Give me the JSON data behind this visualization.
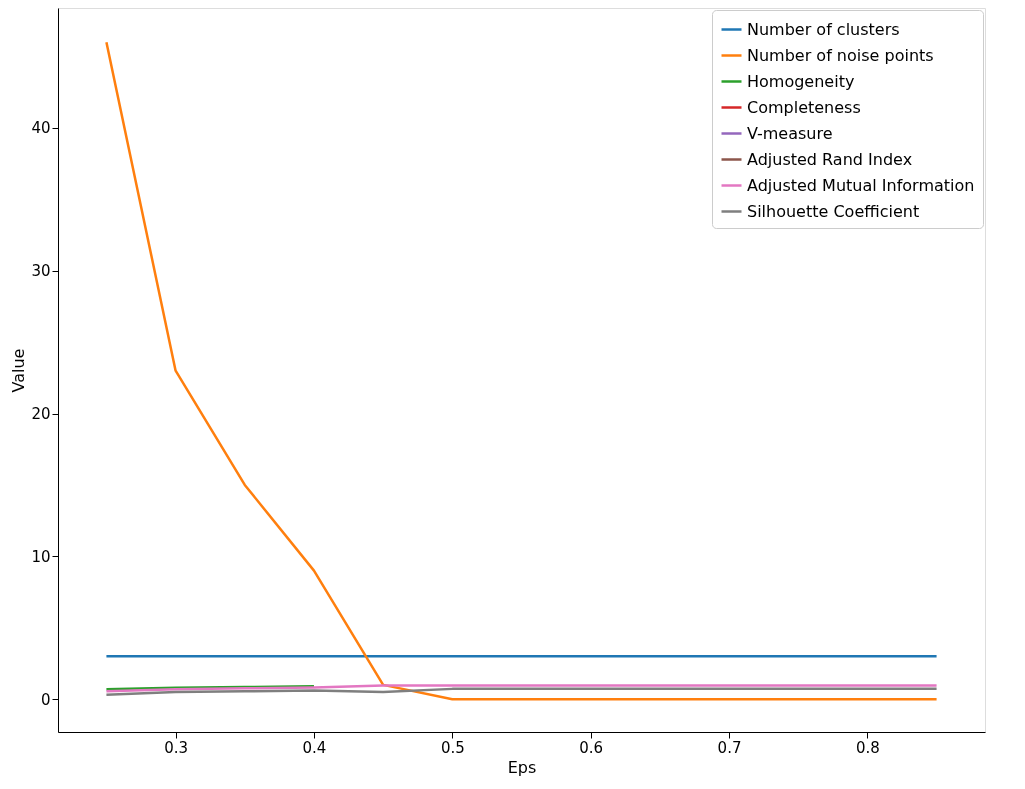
{
  "chart_data": {
    "type": "line",
    "xlabel": "Eps",
    "ylabel": "Value",
    "x": [
      0.25,
      0.3,
      0.35,
      0.4,
      0.45,
      0.5,
      0.55,
      0.6,
      0.65,
      0.7,
      0.75,
      0.8,
      0.85
    ],
    "xlim": [
      0.215,
      0.885
    ],
    "xticks": [
      0.3,
      0.4,
      0.5,
      0.6,
      0.7,
      0.8
    ],
    "ylim": [
      -2.3,
      48.4
    ],
    "yticks": [
      0,
      10,
      20,
      30,
      40
    ],
    "legend": "top right",
    "grid": false,
    "marker": "none",
    "line_style": "solid",
    "series": [
      {
        "name": "Number of clusters",
        "color": "#1f77b4",
        "values": [
          3,
          3,
          3,
          3,
          3,
          3,
          3,
          3,
          3,
          3,
          3,
          3,
          3
        ]
      },
      {
        "name": "Number of noise points",
        "color": "#ff7f0e",
        "values": [
          46,
          23,
          15,
          9,
          1,
          0,
          0,
          0,
          0,
          0,
          0,
          0,
          0
        ]
      },
      {
        "name": "Homogeneity",
        "color": "#2ca02c",
        "values": [
          0.7,
          0.8,
          0.85,
          0.9,
          null,
          null,
          null,
          null,
          null,
          null,
          null,
          null,
          null
        ]
      },
      {
        "name": "Completeness",
        "color": "#d62728",
        "values": [
          null,
          null,
          null,
          null,
          null,
          null,
          null,
          null,
          null,
          null,
          null,
          null,
          null
        ]
      },
      {
        "name": "V-measure",
        "color": "#9467bd",
        "values": [
          null,
          null,
          null,
          null,
          null,
          null,
          null,
          null,
          null,
          null,
          null,
          null,
          null
        ]
      },
      {
        "name": "Adjusted Rand Index",
        "color": "#8c564b",
        "values": [
          null,
          null,
          null,
          null,
          null,
          null,
          null,
          null,
          null,
          null,
          null,
          null,
          null
        ]
      },
      {
        "name": "Adjusted Mutual Information",
        "color": "#e377c2",
        "values": [
          0.55,
          0.7,
          0.76,
          0.81,
          0.95,
          0.95,
          0.95,
          0.95,
          0.95,
          0.95,
          0.95,
          0.95,
          0.95
        ]
      },
      {
        "name": "Silhouette Coefficient",
        "color": "#7f7f7f",
        "values": [
          0.3,
          0.5,
          0.55,
          0.6,
          0.5,
          0.72,
          0.72,
          0.72,
          0.72,
          0.72,
          0.72,
          0.72,
          0.72
        ]
      }
    ]
  }
}
